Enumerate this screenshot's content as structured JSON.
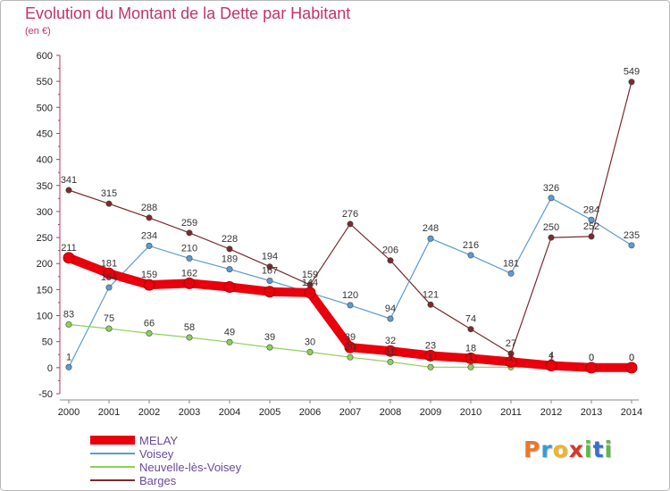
{
  "header": {
    "title": "Evolution du Montant de la Dette par Habitant",
    "subtitle": "(en €)"
  },
  "logo": {
    "text": "Proxiti"
  },
  "chart_data": {
    "type": "line",
    "title": "Evolution du Montant de la Dette par Habitant",
    "subtitle": "(en €)",
    "xlabel": "",
    "ylabel": "",
    "x": [
      2000,
      2001,
      2002,
      2003,
      2004,
      2005,
      2006,
      2007,
      2008,
      2009,
      2010,
      2011,
      2012,
      2013,
      2014
    ],
    "ylim": [
      -50,
      600
    ],
    "yticks": [
      -50,
      0,
      50,
      100,
      150,
      200,
      250,
      300,
      350,
      400,
      450,
      500,
      550,
      600
    ],
    "grid": false,
    "legend_position": "bottom-left",
    "series": [
      {
        "name": "Barges",
        "color": "#7a2b2e",
        "values": [
          341,
          315,
          288,
          259,
          228,
          194,
          159,
          276,
          206,
          121,
          74,
          27,
          250,
          252,
          549
        ],
        "labels": [
          "341",
          "315",
          "288",
          "259",
          "228",
          "194",
          "159",
          "276",
          "206",
          "121",
          "74",
          "27",
          "250",
          "252",
          "549"
        ]
      },
      {
        "name": "Voisey",
        "color": "#5b9bd5",
        "values": [
          1,
          154,
          234,
          210,
          189,
          167,
          144,
          120,
          94,
          248,
          216,
          181,
          326,
          284,
          235
        ],
        "labels": [
          "1",
          "154",
          "234",
          "210",
          "189",
          "167",
          "144",
          "120",
          "94",
          "248",
          "216",
          "181",
          "326",
          "284",
          "235"
        ]
      },
      {
        "name": "Neuvelle-lès-Voisey",
        "color": "#8fd05a",
        "values": [
          83,
          75,
          66,
          58,
          49,
          39,
          30,
          20,
          11,
          1,
          1,
          1,
          1,
          0,
          0
        ],
        "labels": [
          "83",
          "75",
          "66",
          "58",
          "49",
          "39",
          "30",
          "20",
          "11",
          "1",
          "1",
          "1",
          "1",
          "0",
          "0"
        ]
      },
      {
        "name": "MELAY",
        "color": "#e8000c",
        "values": [
          211,
          181,
          159,
          162,
          155,
          146,
          144,
          39,
          32,
          23,
          18,
          11,
          4,
          0,
          0
        ],
        "labels": [
          "211",
          "181",
          "159",
          "162",
          "",
          "",
          "",
          "39",
          "32",
          "23",
          "18",
          "",
          "4",
          "0",
          "0"
        ]
      }
    ],
    "legend": [
      "MELAY",
      "Voisey",
      "Neuvelle-lès-Voisey",
      "Barges"
    ]
  }
}
